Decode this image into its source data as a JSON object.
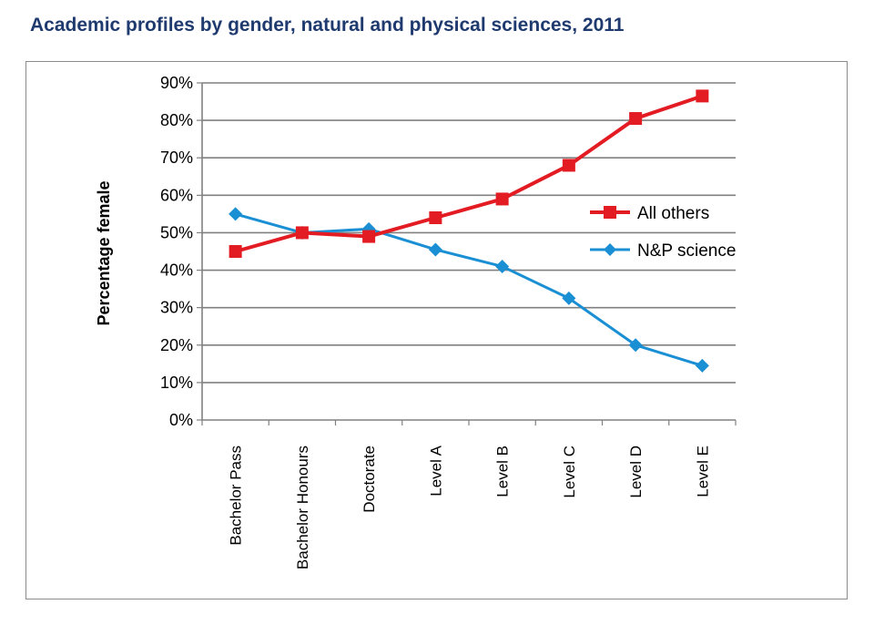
{
  "title": "Academic profiles by gender, natural and physical sciences, 2011",
  "colors": {
    "title": "#1f3a6e",
    "all_others": "#e31b23",
    "np_science": "#1b8fd4",
    "grid": "#808080"
  },
  "chart_data": {
    "type": "line",
    "title": "Academic profiles by gender, natural and physical sciences, 2011",
    "xlabel": "",
    "ylabel": "Percentage female",
    "ylim": [
      0,
      90
    ],
    "yticks": [
      "0%",
      "10%",
      "20%",
      "30%",
      "40%",
      "50%",
      "60%",
      "70%",
      "80%",
      "90%"
    ],
    "categories": [
      "Bachelor Pass",
      "Bachelor Honours",
      "Doctorate",
      "Level A",
      "Level B",
      "Level C",
      "Level D",
      "Level E"
    ],
    "grid": true,
    "legend_position": "right",
    "series": [
      {
        "name": "All others",
        "marker": "square",
        "color": "#e31b23",
        "values": [
          45,
          50,
          49,
          54,
          59,
          68,
          80.5,
          86.5
        ]
      },
      {
        "name": "N&P science",
        "marker": "diamond",
        "color": "#1b8fd4",
        "values": [
          55,
          50,
          51,
          45.5,
          41,
          32.5,
          20,
          14.5
        ]
      }
    ]
  }
}
